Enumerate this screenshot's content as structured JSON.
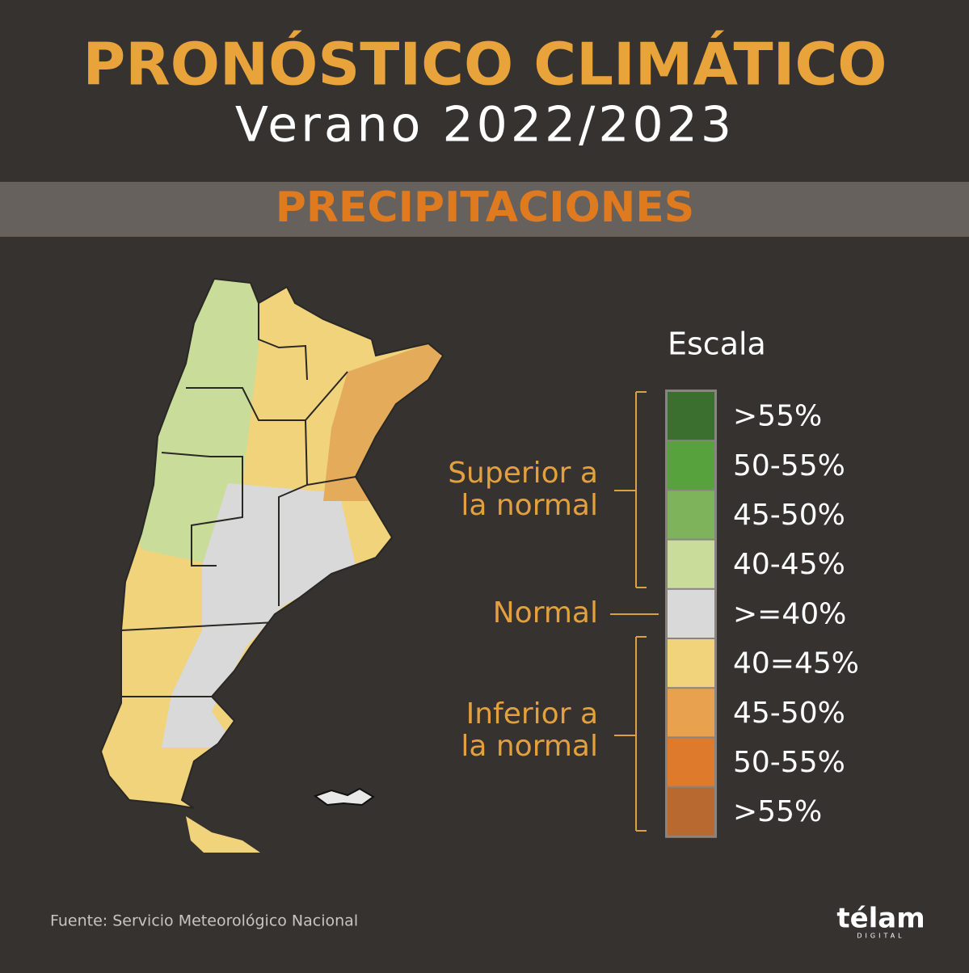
{
  "header": {
    "title": "PRONÓSTICO CLIMÁTICO",
    "subtitle": "Verano 2022/2023"
  },
  "section": "PRECIPITACIONES",
  "legend": {
    "title": "Escala",
    "items": [
      {
        "label": ">55%",
        "color": "#3b6f2f"
      },
      {
        "label": "50-55%",
        "color": "#57a23c"
      },
      {
        "label": "45-50%",
        "color": "#7fb35b"
      },
      {
        "label": "40-45%",
        "color": "#c9dc99"
      },
      {
        "label": ">=40%",
        "color": "#d9d9d9"
      },
      {
        "label": "40=45%",
        "color": "#f1d37b"
      },
      {
        "label": "45-50%",
        "color": "#e8a14e"
      },
      {
        "label": "50-55%",
        "color": "#de7a2b"
      },
      {
        "label": ">55%",
        "color": "#b8692f"
      }
    ],
    "groups": [
      {
        "lines": [
          "Superior a",
          "la normal"
        ]
      },
      {
        "lines": [
          "Normal"
        ]
      },
      {
        "lines": [
          "Inferior a",
          "la normal"
        ]
      }
    ]
  },
  "source": "Fuente: Servicio Meteorológico Nacional",
  "logo": {
    "name": "télam",
    "tag": "DIGITAL"
  }
}
